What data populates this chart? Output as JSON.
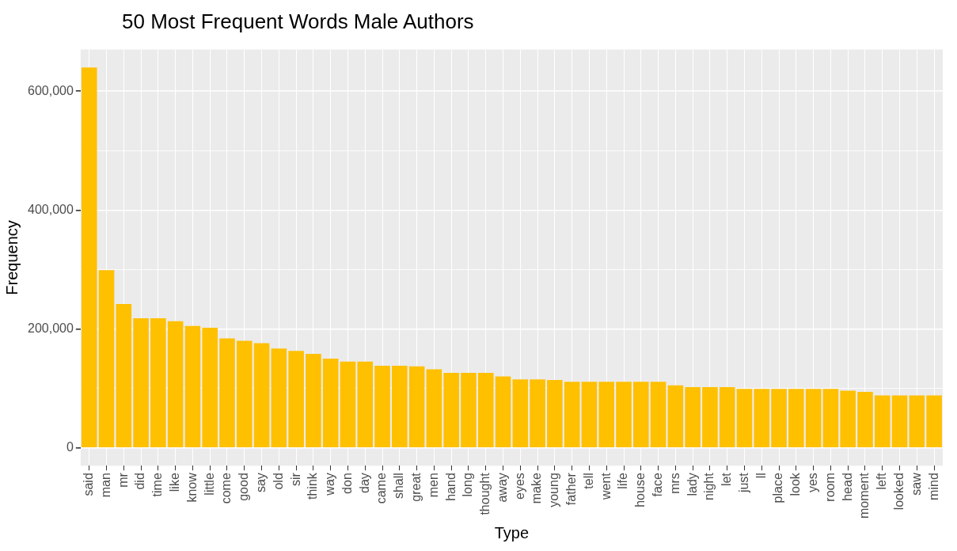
{
  "chart_data": {
    "type": "bar",
    "title": "50 Most Frequent Words Male Authors",
    "xlabel": "Type",
    "ylabel": "Frequency",
    "categories": [
      "said",
      "man",
      "mr",
      "did",
      "time",
      "like",
      "know",
      "little",
      "come",
      "good",
      "say",
      "old",
      "sir",
      "think",
      "way",
      "don",
      "day",
      "came",
      "shall",
      "great",
      "men",
      "hand",
      "long",
      "thought",
      "away",
      "eyes",
      "make",
      "young",
      "father",
      "tell",
      "went",
      "life",
      "house",
      "face",
      "mrs",
      "lady",
      "night",
      "let",
      "just",
      "ll",
      "place",
      "look",
      "yes",
      "room",
      "head",
      "moment",
      "left",
      "looked",
      "saw",
      "mind"
    ],
    "values": [
      640000,
      299000,
      242000,
      218000,
      218000,
      213000,
      205000,
      202000,
      184000,
      180000,
      176000,
      167000,
      163000,
      158000,
      150000,
      145000,
      145000,
      138000,
      138000,
      137000,
      132000,
      126000,
      126000,
      126000,
      120000,
      115000,
      115000,
      114000,
      111000,
      111000,
      111000,
      111000,
      111000,
      111000,
      105000,
      102000,
      102000,
      102000,
      99000,
      99000,
      99000,
      99000,
      99000,
      99000,
      96000,
      94000,
      88000,
      88000,
      88000,
      88000
    ],
    "color": "#ffc000",
    "ylim": [
      -30000,
      670000
    ],
    "yticks": [
      0,
      {
        "value": 100000,
        "label": null
      },
      {
        "value": 200000,
        "label": "200,000"
      },
      {
        "value": 300000,
        "label": null
      },
      {
        "value": 400000,
        "label": "400,000"
      },
      {
        "value": 500000,
        "label": null
      },
      {
        "value": 600000,
        "label": "600,000"
      }
    ],
    "grid": true,
    "legend": false
  }
}
